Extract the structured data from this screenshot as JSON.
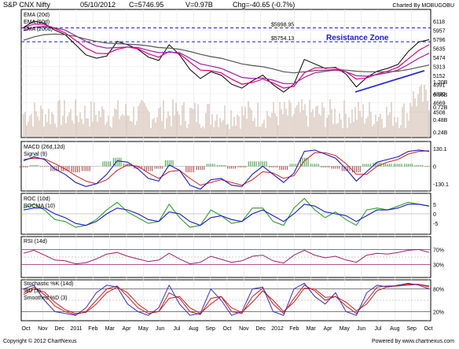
{
  "header": {
    "symbol": "S&P CNX Nifty",
    "date": "05/10/2012",
    "close": "C=5746.95",
    "volume": "V=0.97B",
    "change": "Chg=-40.65 (-0.7%)",
    "charted_by": "Charted By MOBUGOBU"
  },
  "footer": {
    "copyright": "Copyright © 2012 ChartNexus",
    "powered": "Powered by www.chartnexus.com"
  },
  "x_axis": {
    "months": [
      "Oct",
      "Nov",
      "Dec",
      "2011",
      "Feb",
      "Mar",
      "Apr",
      "May",
      "Jun",
      "Jul",
      "Aug",
      "Sep",
      "Oct",
      "Nov",
      "Dec",
      "2012",
      "Feb",
      "Mar",
      "Apr",
      "May",
      "Jun",
      "Jul",
      "Aug",
      "Sep",
      "Oct"
    ]
  },
  "colors": {
    "price": "#000000",
    "ema20": "#e8007c",
    "ema50": "#9b1fa8",
    "ema200": "#555555",
    "trendline": "#2b2bd6",
    "resistance": "#1a1adf",
    "macd": "#1a1acc",
    "signal": "#d42020",
    "hist_pos": "#3a9e3a",
    "hist_neg": "#b04040",
    "roc": "#2ba02b",
    "rocma": "#1a1acc",
    "rsi": "#9b2070",
    "stoch_k": "#3030cc",
    "stoch_d": "#cc2020",
    "volume": "#c8b0a0"
  },
  "chart_data": [
    {
      "type": "line",
      "title": "S&P CNX Nifty",
      "legend": [
        "EMA (20d)",
        "EMA (50d)",
        "EMA (200d)"
      ],
      "ylim": [
        4400,
        6300
      ],
      "y_ticks": [
        "6118",
        "5957",
        "5796",
        "5635",
        "5474",
        "5313",
        "5152",
        "4991",
        "4830",
        "4669",
        "4508"
      ],
      "volume_ticks": [
        "1.20B",
        "0.96B",
        "0.72B",
        "0.48B",
        "0.24B"
      ],
      "annotations": [
        "$5998.95",
        "$5754.13",
        "Resistance Zone"
      ],
      "resistance_levels": [
        5998.95,
        5754.13
      ],
      "series": [
        {
          "name": "S&P CNX Nifty",
          "values": [
            6010,
            6120,
            6080,
            5960,
            5880,
            5700,
            5520,
            5460,
            5500,
            5760,
            5700,
            5620,
            5480,
            5420,
            5700,
            5520,
            5260,
            5100,
            5220,
            5160,
            5000,
            4930,
            5060,
            5160,
            4990,
            4860,
            5000,
            5440,
            5360,
            5280,
            5300,
            5180,
            4950,
            5120,
            5230,
            5280,
            5350,
            5580,
            5750,
            5790
          ]
        },
        {
          "name": "EMA (20d)",
          "values": [
            6000,
            6070,
            6060,
            5990,
            5910,
            5780,
            5640,
            5550,
            5540,
            5620,
            5660,
            5630,
            5540,
            5480,
            5580,
            5540,
            5390,
            5250,
            5240,
            5200,
            5090,
            5000,
            5030,
            5090,
            5020,
            4930,
            4960,
            5200,
            5290,
            5290,
            5290,
            5220,
            5090,
            5110,
            5180,
            5230,
            5300,
            5450,
            5600,
            5700
          ]
        },
        {
          "name": "EMA (50d)",
          "values": [
            5950,
            6010,
            6030,
            6000,
            5960,
            5860,
            5760,
            5680,
            5640,
            5650,
            5660,
            5650,
            5600,
            5560,
            5570,
            5560,
            5460,
            5360,
            5320,
            5280,
            5200,
            5120,
            5100,
            5110,
            5070,
            5010,
            5010,
            5120,
            5200,
            5230,
            5250,
            5220,
            5150,
            5140,
            5170,
            5200,
            5250,
            5350,
            5460,
            5550
          ]
        },
        {
          "name": "EMA (200d)",
          "values": [
            5780,
            5840,
            5880,
            5890,
            5880,
            5850,
            5800,
            5760,
            5730,
            5720,
            5710,
            5700,
            5680,
            5650,
            5640,
            5620,
            5580,
            5530,
            5490,
            5460,
            5410,
            5360,
            5330,
            5310,
            5270,
            5220,
            5200,
            5220,
            5240,
            5250,
            5260,
            5250,
            5230,
            5220,
            5220,
            5220,
            5230,
            5260,
            5300,
            5340
          ]
        }
      ]
    },
    {
      "type": "line",
      "legend": [
        "MACD (26d,12d)",
        "Signal (9)"
      ],
      "y_ticks": [
        "130.1",
        "0",
        "-130.1"
      ],
      "series": [
        {
          "name": "MACD (26d,12d)",
          "values": [
            40,
            70,
            50,
            -20,
            -60,
            -120,
            -150,
            -130,
            -60,
            40,
            30,
            -20,
            -90,
            -110,
            10,
            -30,
            -140,
            -170,
            -100,
            -90,
            -140,
            -150,
            -60,
            0,
            -60,
            -120,
            -50,
            110,
            120,
            90,
            60,
            -20,
            -110,
            -40,
            30,
            50,
            70,
            110,
            120,
            110
          ]
        },
        {
          "name": "Signal (9)",
          "values": [
            50,
            60,
            55,
            20,
            -20,
            -70,
            -110,
            -130,
            -100,
            -30,
            10,
            0,
            -50,
            -90,
            -40,
            -30,
            -90,
            -140,
            -120,
            -100,
            -120,
            -140,
            -100,
            -40,
            -50,
            -90,
            -70,
            40,
            100,
            100,
            80,
            20,
            -60,
            -60,
            0,
            30,
            50,
            90,
            110,
            115
          ]
        }
      ]
    },
    {
      "type": "line",
      "legend": [
        "ROC (10d)",
        "ROCMA (10)"
      ],
      "y_ticks": [
        "5",
        "0",
        "-5"
      ],
      "series": [
        {
          "name": "ROC (10d)",
          "values": [
            3,
            5,
            2,
            -3,
            -4,
            -7,
            -6,
            -3,
            2,
            6,
            1,
            -2,
            -5,
            -4,
            5,
            -2,
            -7,
            -6,
            2,
            -1,
            -5,
            -4,
            3,
            3,
            -4,
            -6,
            3,
            8,
            2,
            -2,
            1,
            -3,
            -6,
            2,
            3,
            2,
            4,
            6,
            5,
            4
          ]
        },
        {
          "name": "ROCMA (10)",
          "values": [
            2,
            3,
            3,
            0,
            -2,
            -5,
            -6,
            -4,
            0,
            3,
            2,
            0,
            -3,
            -4,
            1,
            0,
            -4,
            -6,
            -2,
            -1,
            -3,
            -4,
            0,
            2,
            -1,
            -4,
            0,
            5,
            4,
            1,
            0,
            -1,
            -4,
            -1,
            2,
            2,
            3,
            5,
            5,
            4
          ]
        }
      ]
    },
    {
      "type": "line",
      "legend": [
        "RSI (14d)"
      ],
      "y_ticks": [
        "70%",
        "30%"
      ],
      "series": [
        {
          "name": "RSI (14d)",
          "values": [
            60,
            68,
            55,
            42,
            40,
            32,
            35,
            45,
            58,
            62,
            52,
            45,
            38,
            42,
            60,
            45,
            32,
            36,
            52,
            44,
            36,
            40,
            52,
            55,
            40,
            34,
            55,
            68,
            55,
            48,
            52,
            42,
            36,
            55,
            60,
            58,
            62,
            68,
            70,
            62
          ]
        }
      ]
    },
    {
      "type": "line",
      "legend": [
        "Stochastic %K (14d)",
        "%D (3)",
        "Smoothed %D (3)"
      ],
      "y_ticks": [
        "80%",
        "20%"
      ],
      "series": [
        {
          "name": "Stochastic %K (14d)",
          "values": [
            80,
            90,
            50,
            20,
            15,
            10,
            30,
            70,
            90,
            85,
            40,
            20,
            10,
            30,
            90,
            40,
            10,
            15,
            80,
            50,
            10,
            20,
            80,
            85,
            20,
            10,
            80,
            95,
            60,
            40,
            70,
            20,
            10,
            70,
            90,
            85,
            90,
            95,
            90,
            80
          ]
        },
        {
          "name": "%D (3)",
          "values": [
            70,
            85,
            65,
            35,
            20,
            12,
            20,
            50,
            80,
            88,
            60,
            30,
            15,
            20,
            70,
            55,
            20,
            12,
            55,
            60,
            20,
            15,
            60,
            82,
            40,
            15,
            55,
            90,
            75,
            50,
            60,
            35,
            15,
            50,
            85,
            88,
            88,
            93,
            92,
            85
          ]
        },
        {
          "name": "Smoothed %D (3)",
          "values": [
            65,
            80,
            72,
            45,
            25,
            15,
            18,
            40,
            70,
            85,
            70,
            40,
            20,
            20,
            55,
            60,
            30,
            15,
            40,
            60,
            30,
            18,
            45,
            75,
            50,
            20,
            45,
            82,
            80,
            58,
            60,
            45,
            22,
            40,
            75,
            86,
            88,
            90,
            92,
            88
          ]
        }
      ]
    }
  ]
}
